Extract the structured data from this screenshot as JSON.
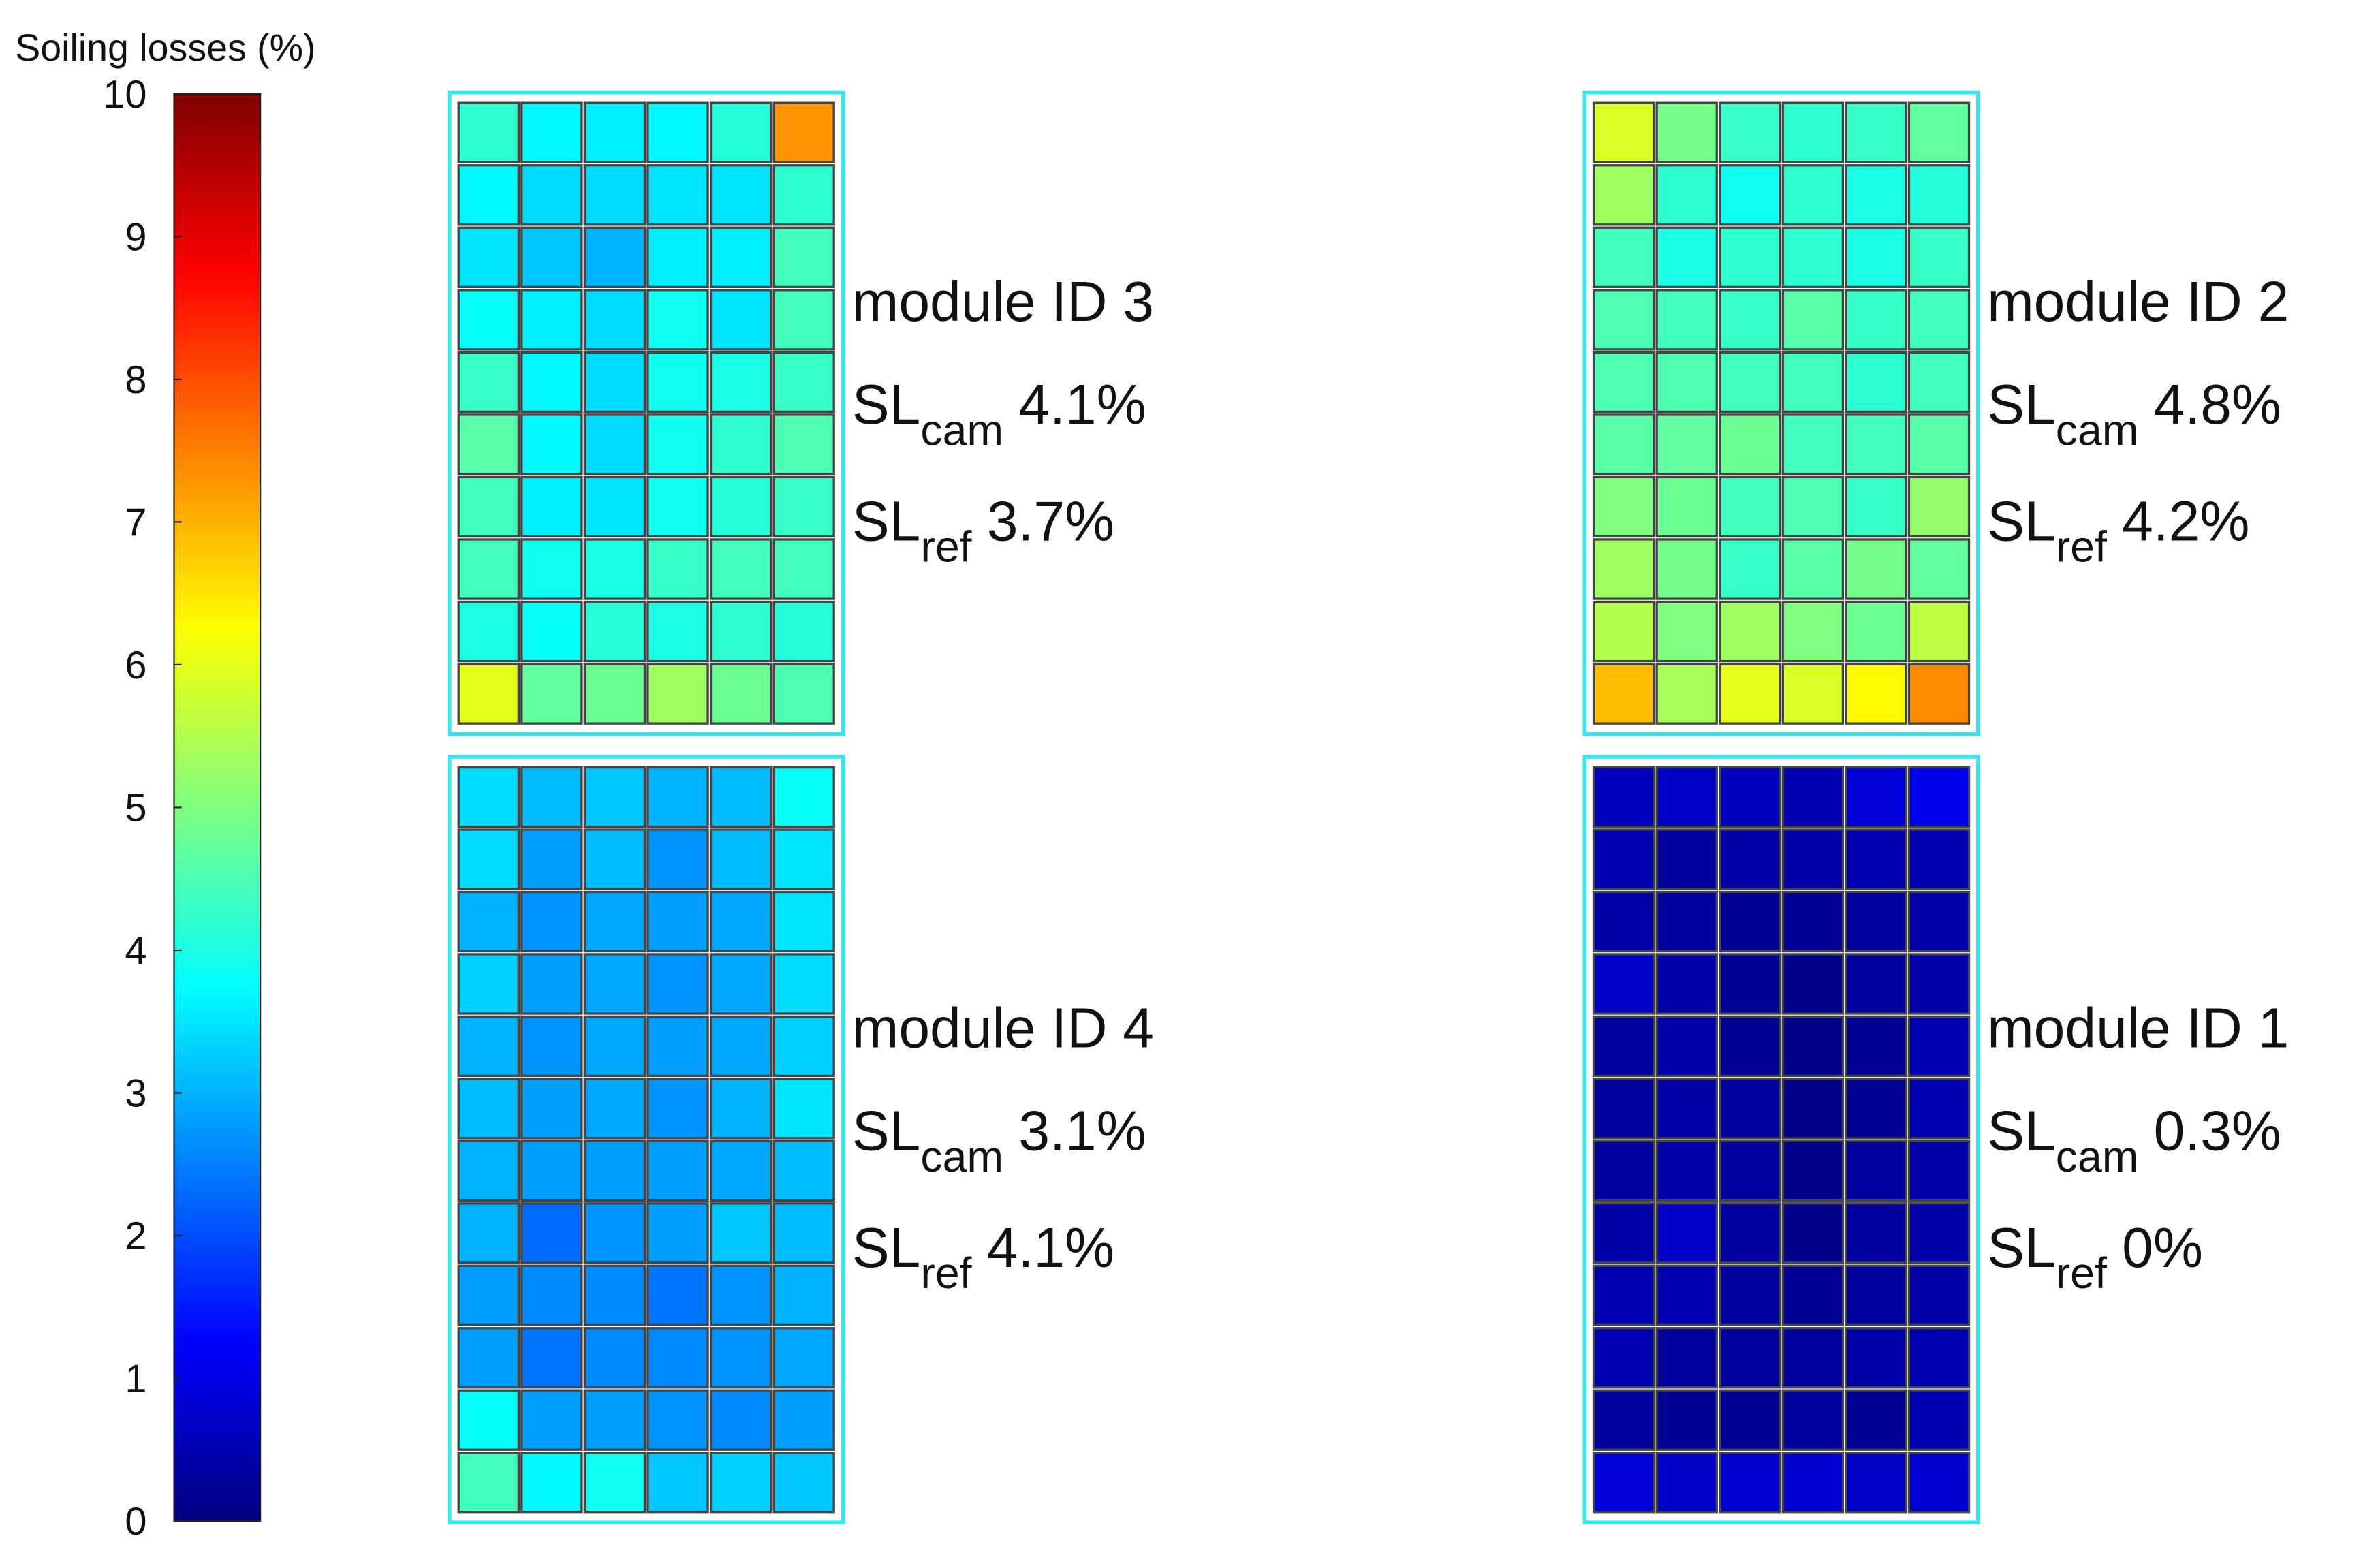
{
  "chart_data": {
    "type": "heatmap",
    "colorbar_label": "Soiling losses (%)",
    "colormap": "jet",
    "clim": [
      0,
      10
    ],
    "cticks": [
      0,
      1,
      2,
      3,
      4,
      5,
      6,
      7,
      8,
      9,
      10
    ],
    "frame_color": "#33e6f0",
    "panels": [
      {
        "title": "module ID 3",
        "metrics": [
          {
            "symbol": "SL",
            "subscript": "cam",
            "value": "4.1%"
          },
          {
            "symbol": "SL",
            "subscript": "ref",
            "value": "3.7%"
          }
        ],
        "values": [
          [
            4.2,
            3.7,
            3.6,
            3.7,
            4.1,
            7.3
          ],
          [
            3.7,
            3.4,
            3.4,
            3.5,
            3.5,
            4.2
          ],
          [
            3.5,
            3.2,
            3.0,
            3.6,
            3.6,
            4.4
          ],
          [
            3.8,
            3.6,
            3.4,
            3.9,
            3.5,
            4.4
          ],
          [
            4.3,
            3.7,
            3.4,
            3.9,
            4.0,
            4.3
          ],
          [
            4.6,
            3.7,
            3.4,
            3.9,
            4.2,
            4.5
          ],
          [
            4.4,
            3.6,
            3.5,
            3.9,
            4.1,
            4.3
          ],
          [
            4.4,
            3.9,
            4.0,
            4.3,
            4.4,
            4.4
          ],
          [
            4.0,
            3.8,
            4.1,
            4.0,
            4.2,
            4.1
          ],
          [
            6.0,
            4.7,
            4.8,
            5.3,
            4.8,
            4.5
          ]
        ]
      },
      {
        "title": "module ID 2",
        "metrics": [
          {
            "symbol": "SL",
            "subscript": "cam",
            "value": "4.8%"
          },
          {
            "symbol": "SL",
            "subscript": "ref",
            "value": "4.2%"
          }
        ],
        "values": [
          [
            5.9,
            4.9,
            4.3,
            4.2,
            4.3,
            4.7
          ],
          [
            5.3,
            4.2,
            3.9,
            4.2,
            4.0,
            4.1
          ],
          [
            4.4,
            4.0,
            4.2,
            4.2,
            4.0,
            4.3
          ],
          [
            4.5,
            4.4,
            4.3,
            4.6,
            4.3,
            4.4
          ],
          [
            4.5,
            4.5,
            4.4,
            4.4,
            4.2,
            4.4
          ],
          [
            4.6,
            4.7,
            4.8,
            4.4,
            4.4,
            4.6
          ],
          [
            5.0,
            4.8,
            4.4,
            4.5,
            4.3,
            5.2
          ],
          [
            5.3,
            4.9,
            4.3,
            4.6,
            4.9,
            4.7
          ],
          [
            5.5,
            5.0,
            5.3,
            5.0,
            4.8,
            5.6
          ],
          [
            6.9,
            5.4,
            6.0,
            5.9,
            6.3,
            7.4
          ]
        ]
      },
      {
        "title": "module ID 4",
        "metrics": [
          {
            "symbol": "SL",
            "subscript": "cam",
            "value": "3.1%"
          },
          {
            "symbol": "SL",
            "subscript": "ref",
            "value": "4.1%"
          }
        ],
        "values": [
          [
            3.4,
            3.1,
            3.2,
            3.0,
            3.1,
            3.8
          ],
          [
            3.4,
            2.8,
            3.1,
            2.7,
            3.1,
            3.5
          ],
          [
            3.0,
            2.7,
            2.9,
            2.8,
            2.9,
            3.5
          ],
          [
            3.3,
            2.8,
            2.9,
            2.7,
            2.9,
            3.4
          ],
          [
            3.0,
            2.7,
            2.9,
            2.8,
            2.9,
            3.3
          ],
          [
            3.1,
            2.8,
            2.9,
            2.7,
            3.0,
            3.5
          ],
          [
            3.0,
            2.8,
            2.8,
            2.8,
            2.9,
            3.1
          ],
          [
            3.0,
            2.3,
            2.7,
            2.8,
            3.2,
            3.1
          ],
          [
            2.8,
            2.6,
            2.6,
            2.4,
            2.7,
            3.0
          ],
          [
            2.8,
            2.4,
            2.6,
            2.6,
            2.7,
            2.9
          ],
          [
            3.8,
            2.8,
            2.8,
            2.7,
            2.6,
            2.8
          ],
          [
            4.4,
            3.7,
            3.9,
            3.2,
            3.3,
            3.2
          ]
        ]
      },
      {
        "title": "module ID 1",
        "metrics": [
          {
            "symbol": "SL",
            "subscript": "cam",
            "value": "0.3%"
          },
          {
            "symbol": "SL",
            "subscript": "ref",
            "value": "0%"
          }
        ],
        "values": [
          [
            0.6,
            0.7,
            0.6,
            0.5,
            0.9,
            1.1
          ],
          [
            0.5,
            0.3,
            0.4,
            0.4,
            0.5,
            0.5
          ],
          [
            0.4,
            0.3,
            0.2,
            0.2,
            0.3,
            0.4
          ],
          [
            0.7,
            0.4,
            0.2,
            0.1,
            0.3,
            0.4
          ],
          [
            0.3,
            0.4,
            0.2,
            0.1,
            0.2,
            0.5
          ],
          [
            0.3,
            0.4,
            0.3,
            0.1,
            0.2,
            0.5
          ],
          [
            0.3,
            0.4,
            0.3,
            0.1,
            0.3,
            0.4
          ],
          [
            0.4,
            0.7,
            0.3,
            0.1,
            0.3,
            0.4
          ],
          [
            0.5,
            0.5,
            0.3,
            0.2,
            0.3,
            0.4
          ],
          [
            0.5,
            0.3,
            0.3,
            0.3,
            0.4,
            0.5
          ],
          [
            0.3,
            0.2,
            0.2,
            0.3,
            0.2,
            0.5
          ],
          [
            0.9,
            0.7,
            0.8,
            0.8,
            0.7,
            0.8
          ]
        ]
      }
    ]
  }
}
